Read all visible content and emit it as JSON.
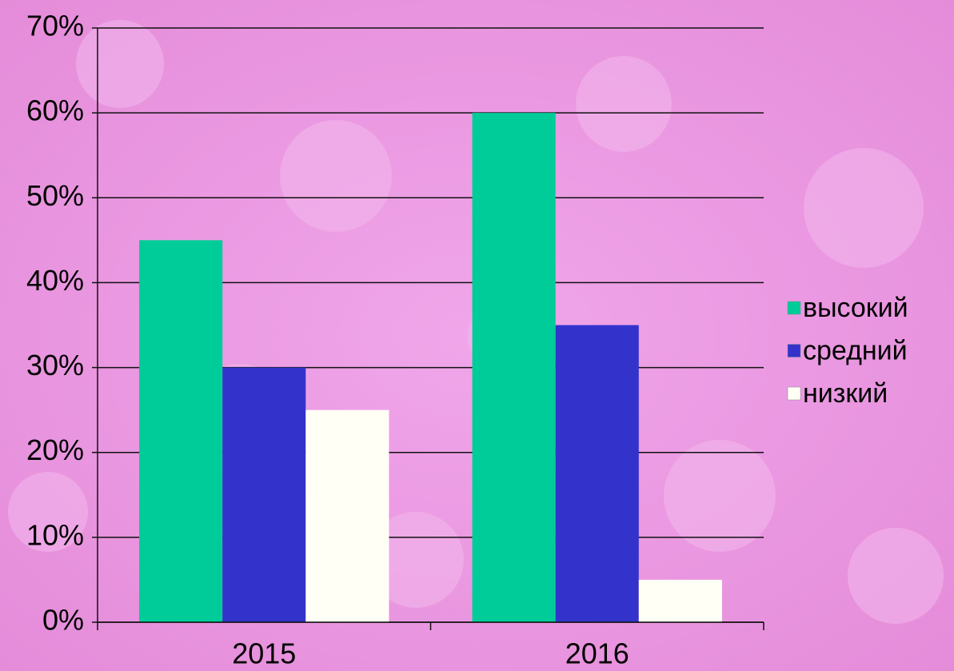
{
  "chart_data": {
    "type": "bar",
    "categories": [
      "2015",
      "2016"
    ],
    "series": [
      {
        "name": "высокий",
        "color": "#00cc99",
        "values": [
          45,
          60
        ]
      },
      {
        "name": "средний",
        "color": "#3333cc",
        "values": [
          30,
          35
        ]
      },
      {
        "name": "низкий",
        "color": "#fffff6",
        "values": [
          25,
          5
        ]
      }
    ],
    "ylim": [
      0,
      70
    ],
    "yticks": [
      {
        "value": 0,
        "label": "0%"
      },
      {
        "value": 10,
        "label": "10%"
      },
      {
        "value": 20,
        "label": "20%"
      },
      {
        "value": 30,
        "label": "30%"
      },
      {
        "value": 40,
        "label": "40%"
      },
      {
        "value": 50,
        "label": "50%"
      },
      {
        "value": 60,
        "label": "60%"
      },
      {
        "value": 70,
        "label": "70%"
      }
    ],
    "grid": true,
    "legend": "right"
  }
}
